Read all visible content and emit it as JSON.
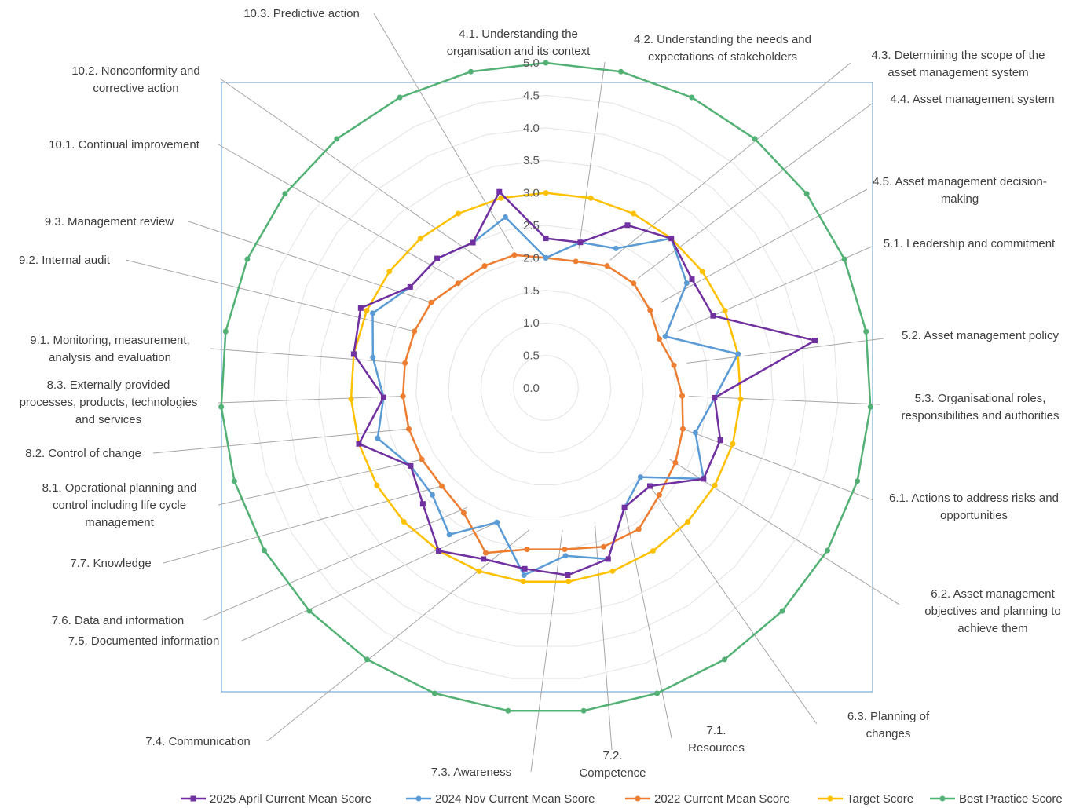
{
  "chart_data": {
    "type": "radar",
    "title": "",
    "rlim": [
      0,
      5
    ],
    "rticks": [
      "0.0",
      "0.5",
      "1.0",
      "1.5",
      "2.0",
      "2.5",
      "3.0",
      "3.5",
      "4.0",
      "4.5",
      "5.0"
    ],
    "grid": true,
    "legend_position": "bottom",
    "categories": [
      [
        "4.1. Understanding the",
        "organisation and its context"
      ],
      [
        "4.2. Understanding the needs and",
        "expectations of stakeholders"
      ],
      [
        "4.3. Determining the scope of the",
        "asset management system"
      ],
      [
        "4.4. Asset management system"
      ],
      [
        "4.5. Asset management decision-",
        "making"
      ],
      [
        "5.1.  Leadership and commitment"
      ],
      [
        "5.2. Asset management policy"
      ],
      [
        "5.3.  Organisational roles,",
        "responsibilities and authorities"
      ],
      [
        "6.1.  Actions to address risks and",
        "opportunities"
      ],
      [
        "6.2. Asset management",
        "objectives and planning to",
        "achieve them"
      ],
      [
        "6.3. Planning of",
        "changes"
      ],
      [
        "7.1.",
        "Resources"
      ],
      [
        "7.2.",
        "Competence"
      ],
      [
        "7.3.  Awareness"
      ],
      [
        "7.4. Communication"
      ],
      [
        "7.5. Documented information"
      ],
      [
        "7.6. Data and information"
      ],
      [
        "7.7. Knowledge"
      ],
      [
        "8.1.  Operational planning and",
        "control including life cycle",
        "management"
      ],
      [
        "8.2. Control of change"
      ],
      [
        "8.3. Externally provided",
        "processes, products, technologies",
        "and services"
      ],
      [
        "9.1.  Monitoring, measurement,",
        "analysis and evaluation"
      ],
      [
        "9.2. Internal audit"
      ],
      [
        "9.3. Management review"
      ],
      [
        "10.1. Continual improvement"
      ],
      [
        "10.2. Nonconformity and",
        "corrective action"
      ],
      [
        "10.3. Predictive action"
      ]
    ],
    "series": [
      {
        "name": "2025 April Current Mean Score",
        "color": "#7030a0",
        "marker": "square",
        "values": [
          2.3,
          2.3,
          2.8,
          3.0,
          2.8,
          2.8,
          4.2,
          2.6,
          2.8,
          2.8,
          2.2,
          2.2,
          2.8,
          2.9,
          2.8,
          2.8,
          3.0,
          2.6,
          2.4,
          3.0,
          2.5,
          3.0,
          3.1,
          2.6,
          2.6,
          2.5,
          3.1
        ]
      },
      {
        "name": "2024 Nov Current Mean Score",
        "color": "#5b9bd5",
        "marker": "circle",
        "values": [
          2.0,
          2.3,
          2.4,
          3.0,
          2.7,
          2.0,
          3.0,
          2.6,
          2.4,
          2.8,
          2.0,
          2.2,
          2.8,
          2.6,
          2.9,
          2.2,
          2.7,
          2.4,
          2.4,
          2.7,
          2.5,
          2.7,
          2.9,
          2.6,
          2.6,
          2.5,
          2.7
        ]
      },
      {
        "name": "2022 Current Mean Score",
        "color": "#ed7d31",
        "marker": "circle",
        "values": [
          2.0,
          2.0,
          2.1,
          2.1,
          2.0,
          1.9,
          2.0,
          2.1,
          2.2,
          2.3,
          2.4,
          2.6,
          2.6,
          2.5,
          2.5,
          2.7,
          2.3,
          2.2,
          2.2,
          2.2,
          2.2,
          2.2,
          2.2,
          2.2,
          2.1,
          2.1,
          2.1
        ]
      },
      {
        "name": "Target Score",
        "color": "#ffc000",
        "marker": "circle",
        "values": [
          3.0,
          3.0,
          3.0,
          3.0,
          3.0,
          3.0,
          3.0,
          3.0,
          3.0,
          3.0,
          3.0,
          3.0,
          3.0,
          3.0,
          3.0,
          3.0,
          3.0,
          3.0,
          3.0,
          3.0,
          3.0,
          3.0,
          3.0,
          3.0,
          3.0,
          3.0,
          3.0
        ]
      },
      {
        "name": "Best Practice Score",
        "color": "#53b175",
        "marker": "circle",
        "values": [
          5.0,
          5.0,
          5.0,
          5.0,
          5.0,
          5.0,
          5.0,
          5.0,
          5.0,
          5.0,
          5.0,
          5.0,
          5.0,
          5.0,
          5.0,
          5.0,
          5.0,
          5.0,
          5.0,
          5.0,
          5.0,
          5.0,
          5.0,
          5.0,
          5.0,
          5.0,
          5.0
        ]
      }
    ]
  }
}
